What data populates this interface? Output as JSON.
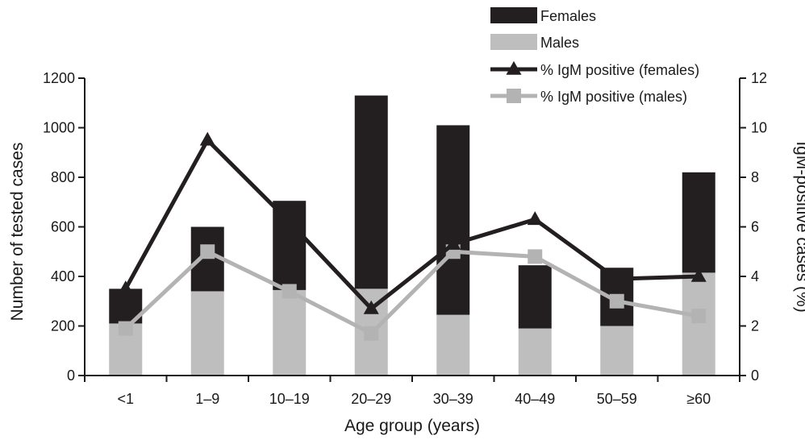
{
  "chart_data": {
    "type": "bar",
    "stacked": true,
    "categories": [
      "<1",
      "1–9",
      "10–19",
      "20–29",
      "30–39",
      "40–49",
      "50–59",
      "≥60"
    ],
    "series": [
      {
        "name": "Males",
        "kind": "bar",
        "axis": "left",
        "color": "#bebebe",
        "values": [
          210,
          340,
          345,
          350,
          245,
          190,
          200,
          415
        ]
      },
      {
        "name": "Females",
        "kind": "bar",
        "axis": "left",
        "color": "#231f20",
        "values": [
          140,
          260,
          360,
          780,
          765,
          255,
          235,
          405
        ]
      },
      {
        "name": "% IgM positive (females)",
        "kind": "line",
        "axis": "right",
        "marker": "triangle",
        "color": "#231f20",
        "values": [
          3.5,
          9.5,
          6.2,
          2.7,
          5.3,
          6.3,
          3.9,
          4.0
        ]
      },
      {
        "name": "% IgM positive (males)",
        "kind": "line",
        "axis": "right",
        "marker": "square",
        "color": "#b3b3b3",
        "values": [
          1.9,
          5.0,
          3.4,
          1.7,
          5.0,
          4.8,
          3.0,
          2.4
        ]
      }
    ],
    "xlabel": "Age group (years)",
    "ylabel": "Number of tested cases",
    "ylim": [
      0,
      1200
    ],
    "yticks": [
      "0",
      "200",
      "400",
      "600",
      "800",
      "1000",
      "1200"
    ],
    "y2label": "IgM-positive cases (%)",
    "y2lim": [
      0,
      12
    ],
    "y2ticks": [
      "0",
      "2",
      "4",
      "6",
      "8",
      "10",
      "12"
    ],
    "legend_position": "top-right",
    "legend_order": [
      "Females",
      "Males",
      "% IgM positive (females)",
      "% IgM positive (males)"
    ],
    "grid": false
  }
}
